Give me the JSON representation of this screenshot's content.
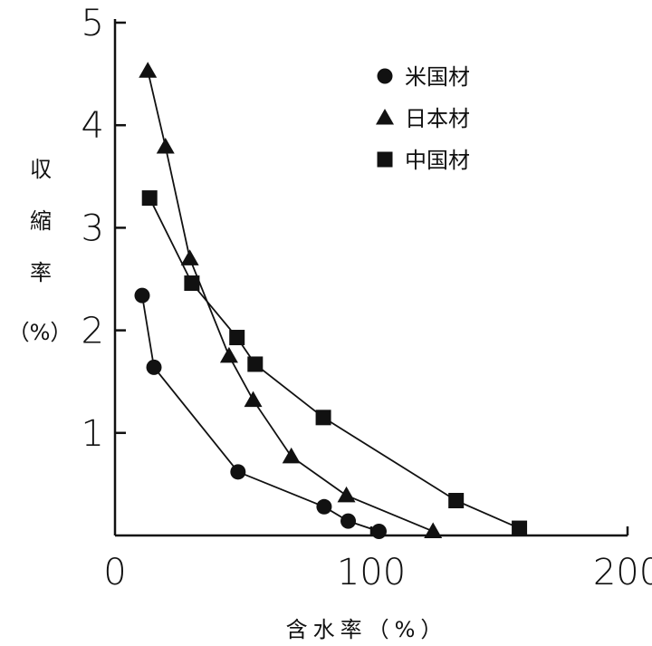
{
  "chart_data": {
    "type": "line",
    "xlabel": "含水率（%）",
    "ylabel": [
      "収",
      "縮",
      "率",
      "（%）"
    ],
    "xlim": [
      0,
      200
    ],
    "ylim": [
      0,
      5
    ],
    "x_ticks": [
      "0",
      "100",
      "200"
    ],
    "y_ticks": [
      "1",
      "2",
      "3",
      "4",
      "5"
    ],
    "grid": false,
    "legend_position": "top-right",
    "series": [
      {
        "name": "米国材",
        "marker": "circle",
        "x": [
          10.6,
          15.2,
          48,
          81.6,
          91,
          103
        ],
        "y": [
          2.34,
          1.64,
          0.62,
          0.28,
          0.14,
          0.04
        ]
      },
      {
        "name": "日本材",
        "marker": "triangle",
        "x": [
          12.8,
          19.7,
          29.2,
          44.5,
          53.9,
          68.8,
          90.3,
          124.1
        ],
        "y": [
          4.53,
          3.79,
          2.7,
          1.75,
          1.32,
          0.77,
          0.39,
          0.04
        ]
      },
      {
        "name": "中国材",
        "marker": "square",
        "x": [
          13.5,
          30,
          47.6,
          54.7,
          81.3,
          133.1,
          157.8
        ],
        "y": [
          3.29,
          2.46,
          1.93,
          1.67,
          1.15,
          0.34,
          0.07
        ]
      }
    ]
  }
}
